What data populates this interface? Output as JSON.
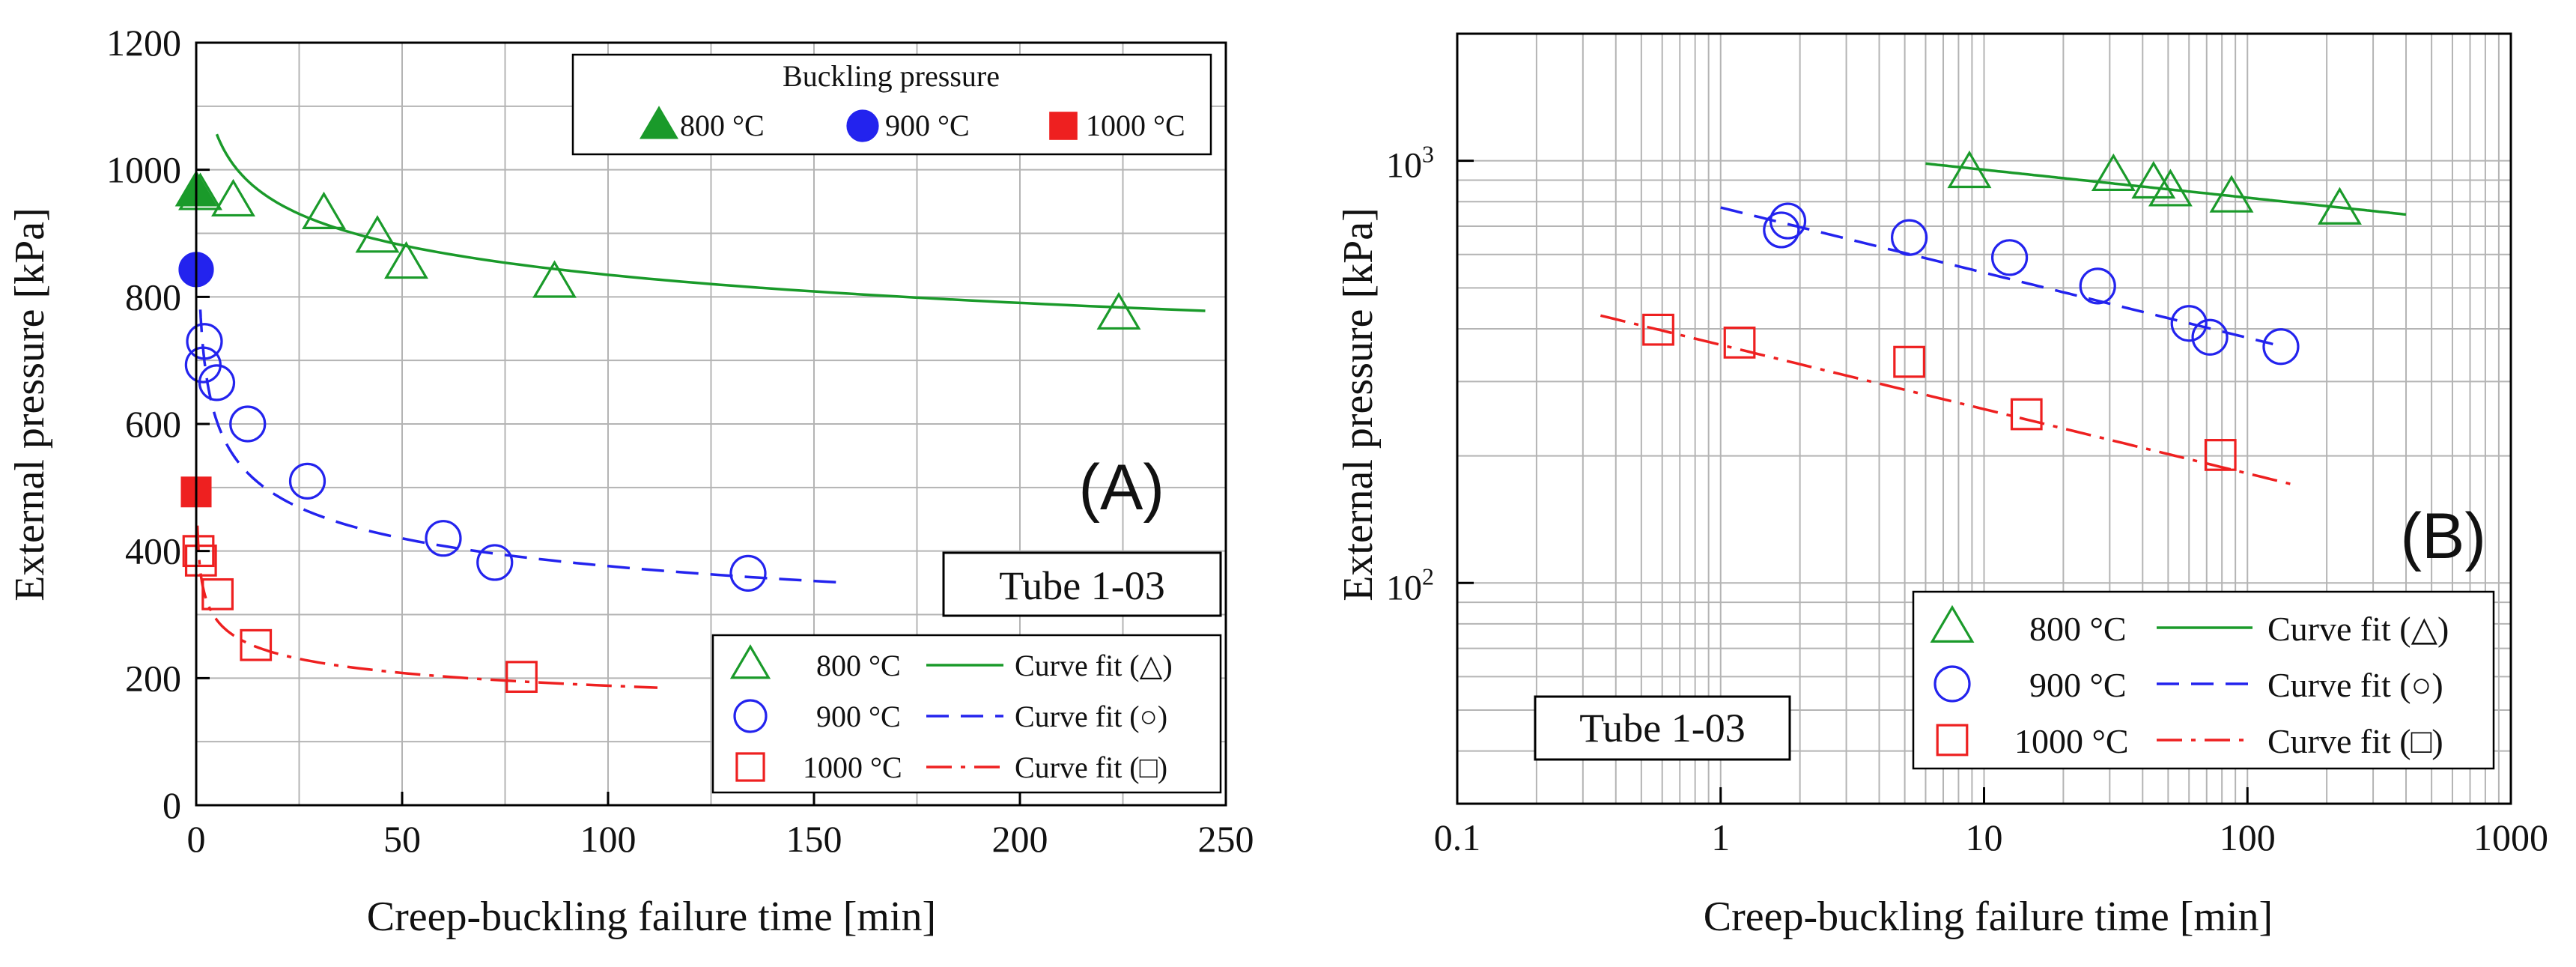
{
  "colors": {
    "s800": "#1a9a2a",
    "s900": "#2323ee",
    "s1000": "#ee2020",
    "grid": "#b4b4b4",
    "frame": "#000000"
  },
  "chart_data": [
    {
      "type": "scatter",
      "id": "A",
      "panel_label": "(A)",
      "tube_label": "Tube 1-03",
      "xlabel": "Creep-buckling failure time [min]",
      "ylabel": "External pressure [kPa]",
      "xscale": "linear",
      "yscale": "linear",
      "xlim": [
        0,
        250
      ],
      "ylim": [
        0,
        1200
      ],
      "xticks": [
        0,
        50,
        100,
        150,
        200,
        250
      ],
      "xtick_labels": [
        "0",
        "50",
        "100",
        "150",
        "200",
        "250"
      ],
      "yticks": [
        0,
        200,
        400,
        600,
        800,
        1000,
        1200
      ],
      "ytick_labels": [
        "0",
        "200",
        "400",
        "600",
        "800",
        "1000",
        "1200"
      ],
      "grid": true,
      "buckling_legend": {
        "title": "Buckling pressure",
        "entries": [
          {
            "label": "800 °C",
            "series": "s800"
          },
          {
            "label": "900 °C",
            "series": "s900"
          },
          {
            "label": "1000 °C",
            "series": "s1000"
          }
        ]
      },
      "buckling_points": [
        {
          "series": "s800",
          "x": 0,
          "y": 965
        },
        {
          "series": "s900",
          "x": 0,
          "y": 843
        },
        {
          "series": "s1000",
          "x": 0,
          "y": 493
        }
      ],
      "series": [
        {
          "key": "s800",
          "name": "800 °C",
          "marker": "triangle",
          "points": [
            [
              1,
              960
            ],
            [
              9,
              950
            ],
            [
              31,
              930
            ],
            [
              44,
              893
            ],
            [
              51,
              852
            ],
            [
              87,
              822
            ],
            [
              224,
              772
            ]
          ],
          "fit": {
            "label": "Curve fit (△)",
            "dash": "solid",
            "x_from": 5,
            "x_to": 245,
            "p1": [
              10,
              1000
            ],
            "p2": [
              245,
              778
            ]
          }
        },
        {
          "key": "s900",
          "name": "900 °C",
          "marker": "circle",
          "points": [
            [
              1.7,
              693
            ],
            [
              2,
              730
            ],
            [
              5,
              665
            ],
            [
              12.5,
              600
            ],
            [
              27,
              510
            ],
            [
              60,
              420
            ],
            [
              72.5,
              382
            ],
            [
              134,
              365
            ]
          ],
          "fit": {
            "label": "Curve fit (○)",
            "dash": "dashed",
            "x_from": 1,
            "x_to": 158,
            "p1": [
              1,
              780
            ],
            "p2": [
              158,
              350
            ]
          }
        },
        {
          "key": "s1000",
          "name": "1000 °C",
          "marker": "square",
          "points": [
            [
              0.55,
              400
            ],
            [
              1.15,
              385
            ],
            [
              5.2,
              332
            ],
            [
              14.5,
              252
            ],
            [
              79,
              202
            ]
          ],
          "fit": {
            "label": "Curve fit (□)",
            "dash": "dashdot",
            "x_from": 0.3,
            "x_to": 112,
            "p1": [
              0.3,
              440
            ],
            "p2": [
              112,
              185
            ]
          }
        }
      ]
    },
    {
      "type": "scatter",
      "id": "B",
      "panel_label": "(B)",
      "tube_label": "Tube 1-03",
      "xlabel": "Creep-buckling failure time [min]",
      "ylabel": "External pressure [kPa]",
      "xscale": "log",
      "yscale": "log",
      "xlim": [
        0.1,
        1000
      ],
      "ylim": [
        30,
        2000
      ],
      "xticks": [
        0.1,
        1,
        10,
        100,
        1000
      ],
      "xtick_labels": [
        "0.1",
        "1",
        "10",
        "100",
        "1000"
      ],
      "ytick_labels": [
        {
          "value": 100,
          "base": "10",
          "exp": "2"
        },
        {
          "value": 1000,
          "base": "10",
          "exp": "3"
        }
      ],
      "grid": true,
      "series": [
        {
          "key": "s800",
          "name": "800 °C",
          "marker": "triangle",
          "points": [
            [
              8.8,
              935
            ],
            [
              31,
              920
            ],
            [
              44,
              883
            ],
            [
              51,
              846
            ],
            [
              87,
              818
            ],
            [
              224,
              766
            ]
          ],
          "fit": {
            "label": "Curve fit (△)",
            "dash": "solid",
            "x_from": 6,
            "x_to": 400,
            "p1": [
              6,
              985
            ],
            "p2": [
              400,
              746
            ]
          }
        },
        {
          "key": "s900",
          "name": "900 °C",
          "marker": "circle",
          "points": [
            [
              1.7,
              686
            ],
            [
              1.8,
              720
            ],
            [
              5.2,
              658
            ],
            [
              12.5,
              590
            ],
            [
              27,
              505
            ],
            [
              60,
              412
            ],
            [
              72,
              382
            ],
            [
              134,
              363
            ]
          ],
          "fit": {
            "label": "Curve fit (○)",
            "dash": "dashed",
            "x_from": 1,
            "x_to": 125,
            "p1": [
              1,
              775
            ],
            "p2": [
              125,
              368
            ]
          }
        },
        {
          "key": "s1000",
          "name": "1000 °C",
          "marker": "square",
          "points": [
            [
              0.58,
              398
            ],
            [
              1.18,
              371
            ],
            [
              5.2,
              334
            ],
            [
              14.5,
              251
            ],
            [
              79,
              201
            ]
          ],
          "fit": {
            "label": "Curve fit (□)",
            "dash": "dashdot",
            "x_from": 0.35,
            "x_to": 155,
            "p1": [
              0.35,
              430
            ],
            "p2": [
              155,
              170
            ]
          }
        }
      ]
    }
  ]
}
